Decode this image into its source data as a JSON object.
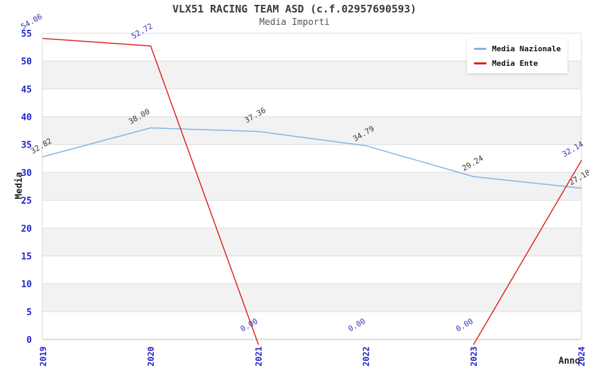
{
  "chart_data": {
    "type": "line",
    "title": "VLX51 RACING TEAM ASD (c.f.02957690593)",
    "subtitle": "Media Importi",
    "xlabel": "Anno",
    "ylabel": "Media",
    "x": [
      2019,
      2020,
      2021,
      2022,
      2023,
      2024
    ],
    "x_ticks": [
      "2019",
      "2020",
      "2021",
      "2022",
      "2023",
      "2024"
    ],
    "y_ticks": [
      0,
      5,
      10,
      15,
      20,
      25,
      30,
      35,
      40,
      45,
      50,
      55
    ],
    "ylim": [
      0,
      55
    ],
    "grid": "horizontal",
    "legend_position": "top-right",
    "series": [
      {
        "name": "Media Nazionale",
        "color": "#82b4e8",
        "label_color": "#3a3a3a",
        "values": [
          32.82,
          38.0,
          37.36,
          34.79,
          29.24,
          27.18
        ],
        "labels": [
          "32.82",
          "38.00",
          "37.36",
          "34.79",
          "29.24",
          "27.18"
        ]
      },
      {
        "name": "Media Ente",
        "color": "#dd2420",
        "label_color": "#3535bb",
        "values": [
          54.06,
          52.72,
          0.0,
          0.0,
          0.0,
          32.14
        ],
        "labels": [
          "54.06",
          "52.72",
          "0.00",
          "0.00",
          "0.00",
          "32.14"
        ]
      }
    ],
    "colors": {
      "tick": "#2323cc",
      "gridline": "#dcdcdc",
      "axis_line": "#bfbfbf",
      "band": "#f2f2f2",
      "title": "#3a3a3a",
      "subtitle": "#555555"
    }
  }
}
